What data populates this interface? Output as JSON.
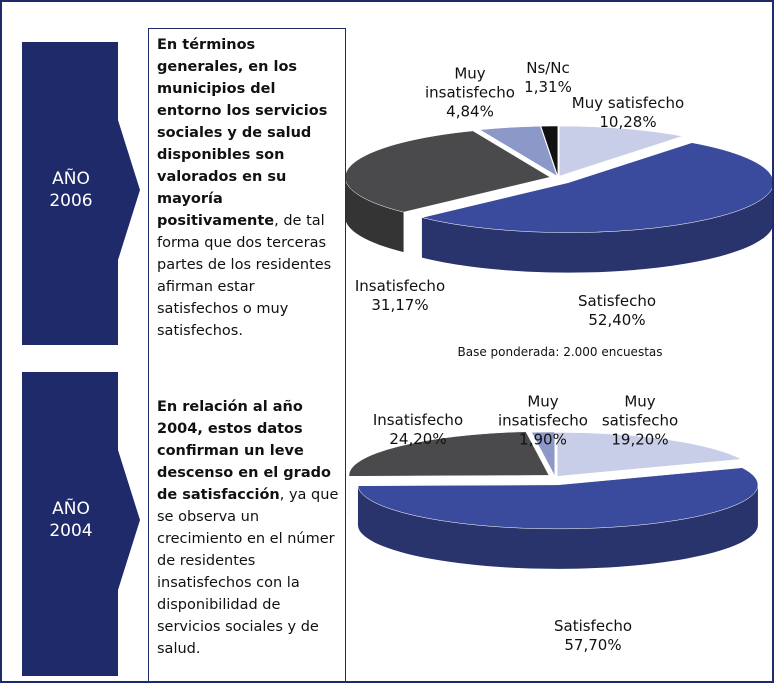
{
  "years": [
    "AÑO 2006",
    "AÑO 2004"
  ],
  "paragraphs": [
    {
      "bold": "En términos generales, en los municipios del entorno los servicios sociales y de salud disponibles son valorados en su mayoría positivamente",
      "normal": ", de tal forma que dos terceras partes de los residentes afirman estar satisfechos o muy satisfechos."
    },
    {
      "bold": "En relación al año 2004, estos datos confirman un leve descenso en el grado de satisfacción",
      "normal": ", ya que se observa un crecimiento en el númer de residentes insatisfechos con la disponibilidad de servicios sociales y de salud."
    }
  ],
  "chart_data": [
    {
      "type": "pie",
      "categories": [
        "Muy satisfecho",
        "Satisfecho",
        "Insatisfecho",
        "Muy insatisfecho",
        "Ns/Nc"
      ],
      "values": [
        10.28,
        52.4,
        31.17,
        4.84,
        1.31
      ],
      "value_labels": [
        "10,28%",
        "52,40%",
        "31,17%",
        "4,84%",
        "1,31%"
      ],
      "colors": [
        "#c9cee8",
        "#3a4a9c",
        "#4a4a4c",
        "#8c98c8",
        "#111111"
      ],
      "note": "Base ponderada: 2.000 encuestas"
    },
    {
      "type": "pie",
      "categories": [
        "Muy satisfecho",
        "Satisfecho",
        "Insatisfecho",
        "Muy insatisfecho"
      ],
      "values": [
        19.2,
        57.7,
        24.2,
        1.9
      ],
      "value_labels": [
        "19,20%",
        "57,70%",
        "24,20%",
        "1,90%"
      ],
      "colors": [
        "#c9cee8",
        "#3a4a9c",
        "#4a4a4c",
        "#8c98c8"
      ]
    }
  ]
}
